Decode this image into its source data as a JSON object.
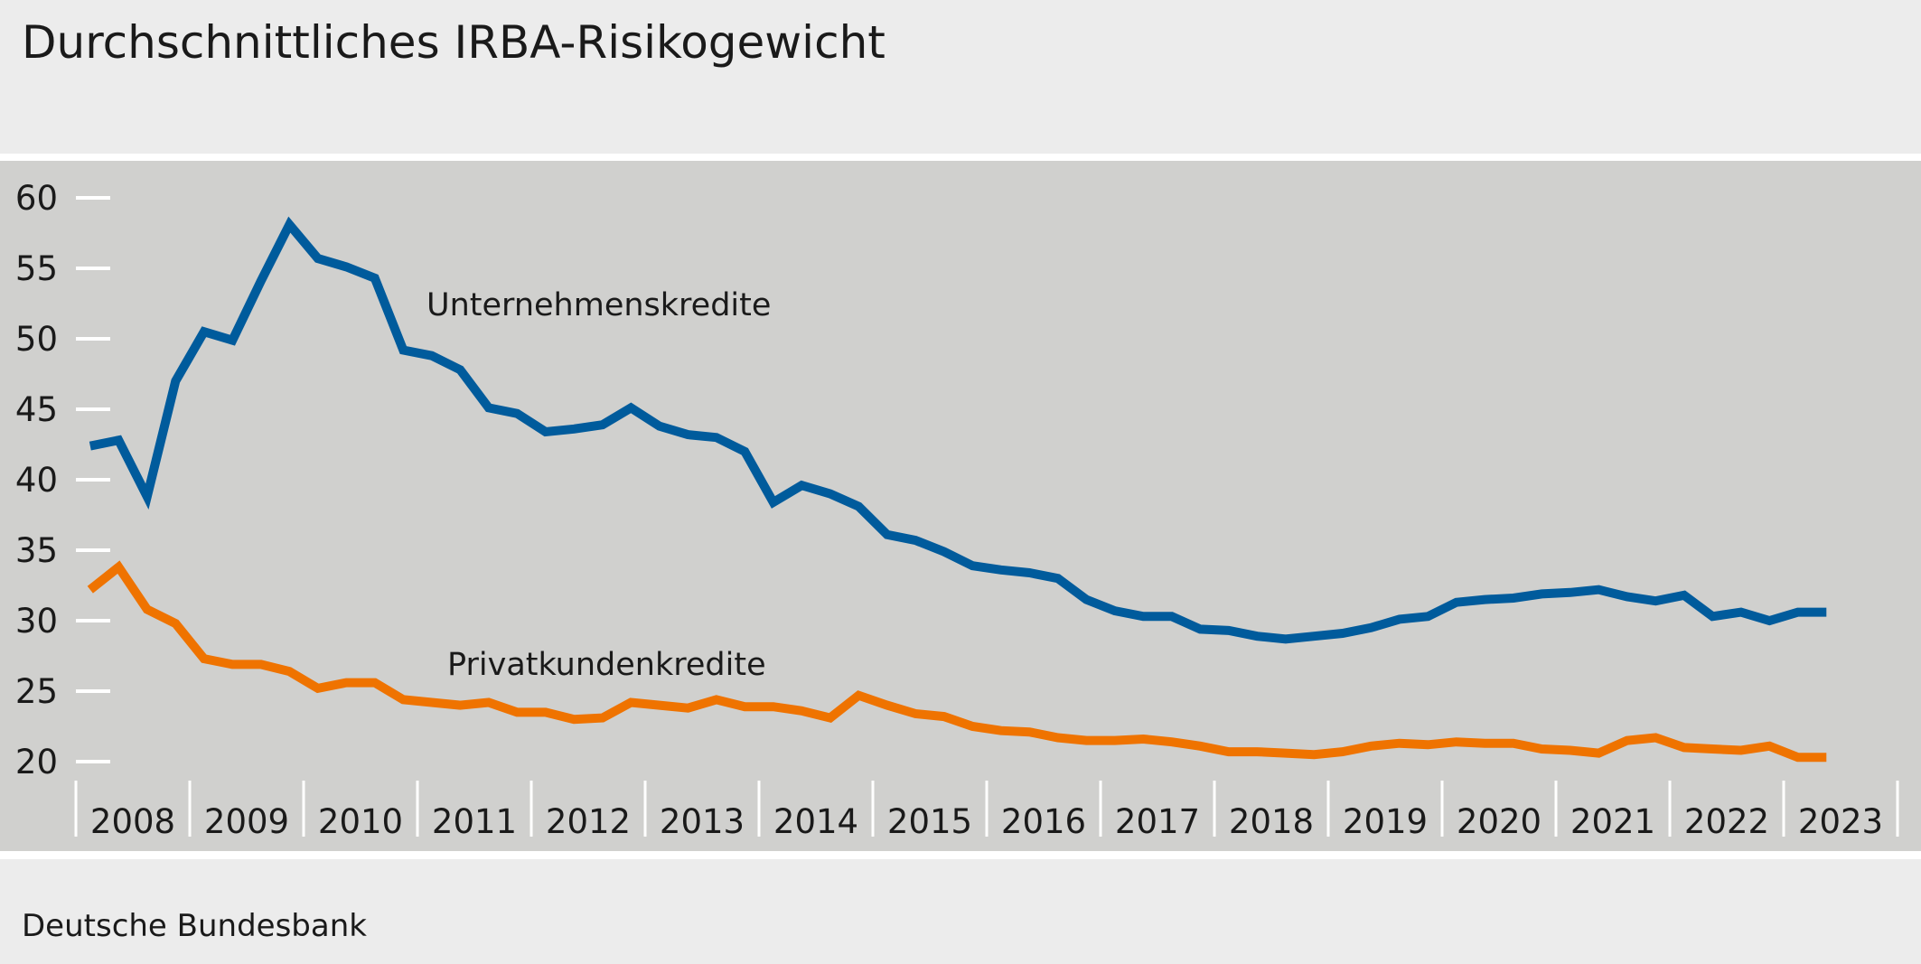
{
  "chart_data": {
    "type": "line",
    "title": "Durchschnittliches IRBA-Risikogewicht",
    "source": "Deutsche Bundesbank",
    "xlabel": "",
    "ylabel": "",
    "ylim": [
      20,
      60
    ],
    "yticks": [
      "20",
      "25",
      "30",
      "35",
      "40",
      "45",
      "50",
      "55",
      "60"
    ],
    "year_labels": [
      "2008",
      "2009",
      "2010",
      "2011",
      "2012",
      "2013",
      "2014",
      "2015",
      "2016",
      "2017",
      "2018",
      "2019",
      "2020",
      "2021",
      "2022",
      "2023"
    ],
    "x_start": "2008-Q1",
    "x_frequency": "quarterly",
    "grid": false,
    "legend": "inline labels",
    "series": [
      {
        "name": "Unternehmenskredite",
        "color": "#005b9c",
        "values": [
          42.4,
          42.8,
          38.8,
          47.0,
          50.5,
          49.9,
          54.1,
          58.1,
          55.7,
          55.1,
          54.3,
          49.2,
          48.8,
          47.8,
          45.1,
          44.7,
          43.4,
          43.6,
          43.9,
          45.1,
          43.8,
          43.2,
          43.0,
          42.0,
          38.4,
          39.6,
          39.0,
          38.1,
          36.1,
          35.7,
          34.9,
          33.9,
          33.6,
          33.4,
          33.0,
          31.5,
          30.7,
          30.3,
          30.3,
          29.4,
          29.3,
          28.9,
          28.7,
          28.9,
          29.1,
          29.5,
          30.1,
          30.3,
          31.3,
          31.5,
          31.6,
          31.9,
          32.0,
          32.2,
          31.7,
          31.4,
          31.8,
          30.3,
          30.6,
          30.0,
          30.6,
          30.6
        ]
      },
      {
        "name": "Privatkundenkredite",
        "color": "#ef7300",
        "values": [
          32.2,
          33.8,
          30.8,
          29.8,
          27.3,
          26.9,
          26.9,
          26.4,
          25.2,
          25.6,
          25.6,
          24.4,
          24.2,
          24.0,
          24.2,
          23.5,
          23.5,
          23.0,
          23.1,
          24.2,
          24.0,
          23.8,
          24.4,
          23.9,
          23.9,
          23.6,
          23.1,
          24.7,
          24.0,
          23.4,
          23.2,
          22.5,
          22.2,
          22.1,
          21.7,
          21.5,
          21.5,
          21.6,
          21.4,
          21.1,
          20.7,
          20.7,
          20.6,
          20.5,
          20.7,
          21.1,
          21.3,
          21.2,
          21.4,
          21.3,
          21.3,
          20.9,
          20.8,
          20.6,
          21.5,
          21.7,
          21.0,
          20.9,
          20.8,
          21.1,
          20.3,
          20.3
        ]
      }
    ]
  }
}
